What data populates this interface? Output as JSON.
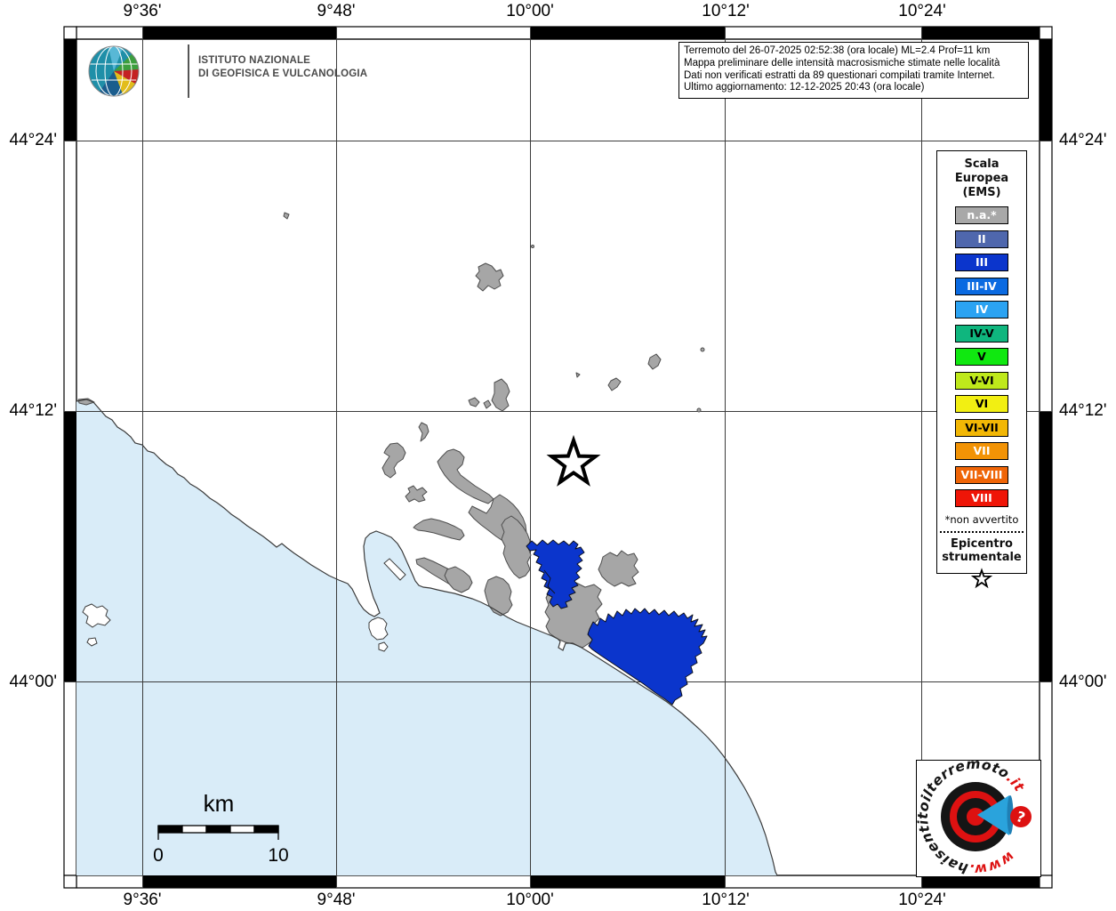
{
  "frame": {
    "lon_labels": [
      "9°36'",
      "9°48'",
      "10°00'",
      "10°12'",
      "10°24'"
    ],
    "lat_labels": [
      "44°24'",
      "44°12'",
      "44°00'"
    ]
  },
  "info_box": {
    "lines": [
      "Terremoto del 26-07-2025 02:52:38 (ora locale) ML=2.4 Prof=11 km",
      "Mappa preliminare delle intensità macrosismiche stimate nelle località",
      "Dati non verificati estratti da 89 questionari compilati tramite Internet.",
      "Ultimo aggiornamento: 12-12-2025 20:43 (ora locale)"
    ]
  },
  "ingv_logo": {
    "line1": "ISTITUTO NAZIONALE",
    "line2": "DI GEOFISICA E VULCANOLOGIA"
  },
  "legend": {
    "title_lines": [
      "Scala",
      "Europea",
      "(EMS)"
    ],
    "items": [
      {
        "label": "n.a.*",
        "color": "#a8a8a8",
        "text_color": "#ffffff"
      },
      {
        "label": "II",
        "color": "#4f67ad",
        "text_color": "#ffffff"
      },
      {
        "label": "III",
        "color": "#0b35cc",
        "text_color": "#ffffff"
      },
      {
        "label": "III-IV",
        "color": "#0a6ae1",
        "text_color": "#ffffff"
      },
      {
        "label": "IV",
        "color": "#2ba3f2",
        "text_color": "#ffffff"
      },
      {
        "label": "IV-V",
        "color": "#0fb67e",
        "text_color": "#000000"
      },
      {
        "label": "V",
        "color": "#10e810",
        "text_color": "#000000"
      },
      {
        "label": "V-VI",
        "color": "#bfe91b",
        "text_color": "#000000"
      },
      {
        "label": "VI",
        "color": "#f2ef12",
        "text_color": "#000000"
      },
      {
        "label": "VI-VII",
        "color": "#f2b705",
        "text_color": "#000000"
      },
      {
        "label": "VII",
        "color": "#f29305",
        "text_color": "#ffffff"
      },
      {
        "label": "VII-VIII",
        "color": "#ef6507",
        "text_color": "#ffffff"
      },
      {
        "label": "VIII",
        "color": "#ef1507",
        "text_color": "#ffffff"
      }
    ],
    "footnote": "*non avvertito",
    "epicenter_title": "Epicentro strumentale"
  },
  "scale_bar": {
    "unit": "km",
    "start_label": "0",
    "end_label": "10"
  },
  "site_logo": {
    "www": "www.",
    "name": "haisentitoilterremoto",
    "tld": ".it",
    "question_mark": "?"
  },
  "map_colors": {
    "sea": "#d9ecf8",
    "municipality_na": "#a6a6a6",
    "municipality_iii": "#0b35cc"
  }
}
